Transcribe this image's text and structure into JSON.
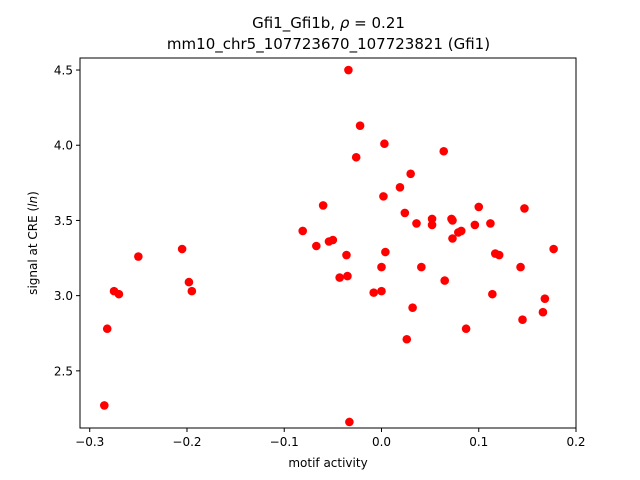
{
  "chart_data": {
    "type": "scatter",
    "title_line1_prefix": "Gfi1_Gfi1b, ",
    "title_rho_symbol": "ρ",
    "title_rho_value": " = 0.21",
    "title_line2": "mm10_chr5_107723670_107723821 (Gfi1)",
    "xlabel": "motif activity",
    "ylabel_prefix": "signal at CRE (",
    "ylabel_italic": "ln",
    "ylabel_suffix": ")",
    "xlim": [
      -0.31,
      0.2
    ],
    "ylim": [
      2.12,
      4.58
    ],
    "xticks": [
      -0.3,
      -0.2,
      -0.1,
      0.0,
      0.1,
      0.2
    ],
    "xtick_labels": [
      "−0.3",
      "−0.2",
      "−0.1",
      "0.0",
      "0.1",
      "0.2"
    ],
    "yticks": [
      2.5,
      3.0,
      3.5,
      4.0,
      4.5
    ],
    "ytick_labels": [
      "2.5",
      "3.0",
      "3.5",
      "4.0",
      "4.5"
    ],
    "grid": false,
    "marker_color": "#ff0000",
    "points": [
      {
        "x": -0.285,
        "y": 2.27
      },
      {
        "x": -0.282,
        "y": 2.78
      },
      {
        "x": -0.275,
        "y": 3.03
      },
      {
        "x": -0.27,
        "y": 3.01
      },
      {
        "x": -0.25,
        "y": 3.26
      },
      {
        "x": -0.205,
        "y": 3.31
      },
      {
        "x": -0.198,
        "y": 3.09
      },
      {
        "x": -0.195,
        "y": 3.03
      },
      {
        "x": -0.081,
        "y": 3.43
      },
      {
        "x": -0.067,
        "y": 3.33
      },
      {
        "x": -0.06,
        "y": 3.6
      },
      {
        "x": -0.054,
        "y": 3.36
      },
      {
        "x": -0.05,
        "y": 3.37
      },
      {
        "x": -0.043,
        "y": 3.12
      },
      {
        "x": -0.036,
        "y": 3.27
      },
      {
        "x": -0.035,
        "y": 3.13
      },
      {
        "x": -0.034,
        "y": 4.5
      },
      {
        "x": -0.033,
        "y": 2.16
      },
      {
        "x": -0.026,
        "y": 3.92
      },
      {
        "x": -0.022,
        "y": 4.13
      },
      {
        "x": -0.008,
        "y": 3.02
      },
      {
        "x": 0.0,
        "y": 3.19
      },
      {
        "x": 0.0,
        "y": 3.03
      },
      {
        "x": 0.002,
        "y": 3.66
      },
      {
        "x": 0.003,
        "y": 4.01
      },
      {
        "x": 0.004,
        "y": 3.29
      },
      {
        "x": 0.019,
        "y": 3.72
      },
      {
        "x": 0.024,
        "y": 3.55
      },
      {
        "x": 0.026,
        "y": 2.71
      },
      {
        "x": 0.03,
        "y": 3.81
      },
      {
        "x": 0.032,
        "y": 2.92
      },
      {
        "x": 0.036,
        "y": 3.48
      },
      {
        "x": 0.041,
        "y": 3.19
      },
      {
        "x": 0.052,
        "y": 3.51
      },
      {
        "x": 0.052,
        "y": 3.47
      },
      {
        "x": 0.064,
        "y": 3.96
      },
      {
        "x": 0.065,
        "y": 3.1
      },
      {
        "x": 0.072,
        "y": 3.51
      },
      {
        "x": 0.073,
        "y": 3.5
      },
      {
        "x": 0.073,
        "y": 3.38
      },
      {
        "x": 0.079,
        "y": 3.42
      },
      {
        "x": 0.082,
        "y": 3.43
      },
      {
        "x": 0.087,
        "y": 2.78
      },
      {
        "x": 0.096,
        "y": 3.47
      },
      {
        "x": 0.1,
        "y": 3.59
      },
      {
        "x": 0.112,
        "y": 3.48
      },
      {
        "x": 0.114,
        "y": 3.01
      },
      {
        "x": 0.117,
        "y": 3.28
      },
      {
        "x": 0.121,
        "y": 3.27
      },
      {
        "x": 0.143,
        "y": 3.19
      },
      {
        "x": 0.145,
        "y": 2.84
      },
      {
        "x": 0.147,
        "y": 3.58
      },
      {
        "x": 0.166,
        "y": 2.89
      },
      {
        "x": 0.168,
        "y": 2.98
      },
      {
        "x": 0.177,
        "y": 3.31
      }
    ]
  }
}
